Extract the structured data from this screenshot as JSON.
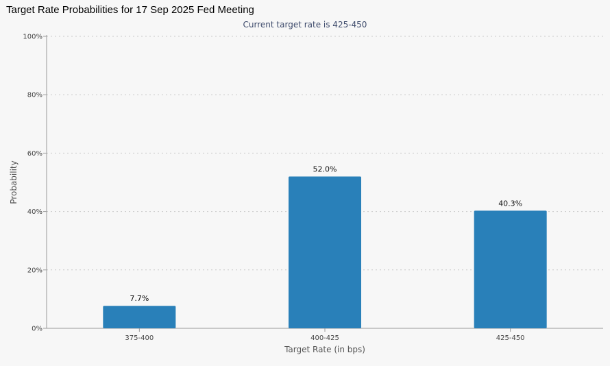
{
  "chart_data": {
    "type": "bar",
    "title": "Target Rate Probabilities for 17 Sep 2025 Fed Meeting",
    "subtitle": "Current target rate is 425-450",
    "xlabel": "Target Rate (in bps)",
    "ylabel": "Probability",
    "categories": [
      "375-400",
      "400-425",
      "425-450"
    ],
    "values": [
      7.7,
      52.0,
      40.3
    ],
    "data_labels": [
      "7.7%",
      "52.0%",
      "40.3%"
    ],
    "ylim": [
      0,
      100
    ],
    "yticks": [
      0,
      20,
      40,
      60,
      80,
      100
    ],
    "ytick_labels": [
      "0%",
      "20%",
      "40%",
      "60%",
      "80%",
      "100%"
    ],
    "grid": true,
    "legend": "none",
    "colors": {
      "bar": "#2980b9",
      "grid": "#c8c8c8",
      "axis": "#9a9a9a",
      "tick_text": "#444444",
      "label_text": "#555555",
      "subtitle": "#3d4a6b",
      "background": "#f7f7f7"
    }
  }
}
